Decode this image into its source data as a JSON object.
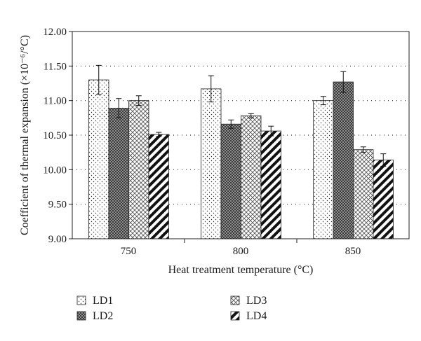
{
  "chart_data": {
    "type": "bar",
    "xlabel": "Heat treatment temperature (°C)",
    "ylabel": "Coefficient of thermal expansion (×10⁻⁶/°C)",
    "ylim": [
      9.0,
      12.0
    ],
    "yticks": [
      "9.00",
      "9.50",
      "10.00",
      "10.50",
      "11.00",
      "11.50",
      "12.00"
    ],
    "categories": [
      "750",
      "800",
      "850"
    ],
    "grid": "horizontal dotted",
    "legend_position": "bottom",
    "series": [
      {
        "name": "LD1",
        "pattern": "dots",
        "values": [
          11.3,
          11.17,
          11.0
        ],
        "errors": [
          0.21,
          0.19,
          0.06
        ]
      },
      {
        "name": "LD2",
        "pattern": "dark-checker",
        "values": [
          10.89,
          10.66,
          11.27
        ],
        "errors": [
          0.14,
          0.06,
          0.15
        ]
      },
      {
        "name": "LD3",
        "pattern": "crosshatch",
        "values": [
          11.0,
          10.78,
          10.29
        ],
        "errors": [
          0.07,
          0.03,
          0.04
        ]
      },
      {
        "name": "LD4",
        "pattern": "diagonal",
        "values": [
          10.51,
          10.56,
          10.14
        ],
        "errors": [
          0.03,
          0.07,
          0.09
        ]
      }
    ]
  }
}
